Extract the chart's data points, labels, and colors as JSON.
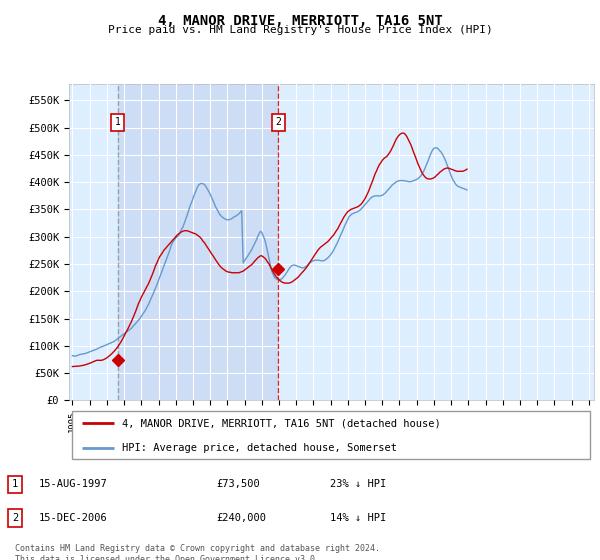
{
  "title": "4, MANOR DRIVE, MERRIOTT, TA16 5NT",
  "subtitle": "Price paid vs. HM Land Registry's House Price Index (HPI)",
  "legend_line1": "4, MANOR DRIVE, MERRIOTT, TA16 5NT (detached house)",
  "legend_line2": "HPI: Average price, detached house, Somerset",
  "footer": "Contains HM Land Registry data © Crown copyright and database right 2024.\nThis data is licensed under the Open Government Licence v3.0.",
  "annotation1": {
    "num": "1",
    "date": "15-AUG-1997",
    "price": "£73,500",
    "pct": "23% ↓ HPI"
  },
  "annotation2": {
    "num": "2",
    "date": "15-DEC-2006",
    "price": "£240,000",
    "pct": "14% ↓ HPI"
  },
  "ylabel_ticks": [
    "£0",
    "£50K",
    "£100K",
    "£150K",
    "£200K",
    "£250K",
    "£300K",
    "£350K",
    "£400K",
    "£450K",
    "£500K",
    "£550K"
  ],
  "ytick_vals": [
    0,
    50000,
    100000,
    150000,
    200000,
    250000,
    300000,
    350000,
    400000,
    450000,
    500000,
    550000
  ],
  "ylim": [
    0,
    580000
  ],
  "xlim_start": 1994.8,
  "xlim_end": 2025.3,
  "hpi_color": "#6699cc",
  "price_color": "#cc0000",
  "bg_color": "#ffffff",
  "plot_bg": "#ddeeff",
  "shade_color": "#ccddf5",
  "grid_color": "#ffffff",
  "vline1_color": "#888888",
  "vline2_color": "#cc0000",
  "marker1_x": 1997.62,
  "marker1_y": 73500,
  "marker2_x": 2006.96,
  "marker2_y": 240000,
  "hpi_x": [
    1995.0,
    1995.08,
    1995.17,
    1995.25,
    1995.33,
    1995.42,
    1995.5,
    1995.58,
    1995.67,
    1995.75,
    1995.83,
    1995.92,
    1996.0,
    1996.08,
    1996.17,
    1996.25,
    1996.33,
    1996.42,
    1996.5,
    1996.58,
    1996.67,
    1996.75,
    1996.83,
    1996.92,
    1997.0,
    1997.08,
    1997.17,
    1997.25,
    1997.33,
    1997.42,
    1997.5,
    1997.58,
    1997.67,
    1997.75,
    1997.83,
    1997.92,
    1998.0,
    1998.08,
    1998.17,
    1998.25,
    1998.33,
    1998.42,
    1998.5,
    1998.58,
    1998.67,
    1998.75,
    1998.83,
    1998.92,
    1999.0,
    1999.08,
    1999.17,
    1999.25,
    1999.33,
    1999.42,
    1999.5,
    1999.58,
    1999.67,
    1999.75,
    1999.83,
    1999.92,
    2000.0,
    2000.08,
    2000.17,
    2000.25,
    2000.33,
    2000.42,
    2000.5,
    2000.58,
    2000.67,
    2000.75,
    2000.83,
    2000.92,
    2001.0,
    2001.08,
    2001.17,
    2001.25,
    2001.33,
    2001.42,
    2001.5,
    2001.58,
    2001.67,
    2001.75,
    2001.83,
    2001.92,
    2002.0,
    2002.08,
    2002.17,
    2002.25,
    2002.33,
    2002.42,
    2002.5,
    2002.58,
    2002.67,
    2002.75,
    2002.83,
    2002.92,
    2003.0,
    2003.08,
    2003.17,
    2003.25,
    2003.33,
    2003.42,
    2003.5,
    2003.58,
    2003.67,
    2003.75,
    2003.83,
    2003.92,
    2004.0,
    2004.08,
    2004.17,
    2004.25,
    2004.33,
    2004.42,
    2004.5,
    2004.58,
    2004.67,
    2004.75,
    2004.83,
    2004.92,
    2005.0,
    2005.08,
    2005.17,
    2005.25,
    2005.33,
    2005.42,
    2005.5,
    2005.58,
    2005.67,
    2005.75,
    2005.83,
    2005.92,
    2006.0,
    2006.08,
    2006.17,
    2006.25,
    2006.33,
    2006.42,
    2006.5,
    2006.58,
    2006.67,
    2006.75,
    2006.83,
    2006.92,
    2007.0,
    2007.08,
    2007.17,
    2007.25,
    2007.33,
    2007.42,
    2007.5,
    2007.58,
    2007.67,
    2007.75,
    2007.83,
    2007.92,
    2008.0,
    2008.08,
    2008.17,
    2008.25,
    2008.33,
    2008.42,
    2008.5,
    2008.58,
    2008.67,
    2008.75,
    2008.83,
    2008.92,
    2009.0,
    2009.08,
    2009.17,
    2009.25,
    2009.33,
    2009.42,
    2009.5,
    2009.58,
    2009.67,
    2009.75,
    2009.83,
    2009.92,
    2010.0,
    2010.08,
    2010.17,
    2010.25,
    2010.33,
    2010.42,
    2010.5,
    2010.58,
    2010.67,
    2010.75,
    2010.83,
    2010.92,
    2011.0,
    2011.08,
    2011.17,
    2011.25,
    2011.33,
    2011.42,
    2011.5,
    2011.58,
    2011.67,
    2011.75,
    2011.83,
    2011.92,
    2012.0,
    2012.08,
    2012.17,
    2012.25,
    2012.33,
    2012.42,
    2012.5,
    2012.58,
    2012.67,
    2012.75,
    2012.83,
    2012.92,
    2013.0,
    2013.08,
    2013.17,
    2013.25,
    2013.33,
    2013.42,
    2013.5,
    2013.58,
    2013.67,
    2013.75,
    2013.83,
    2013.92,
    2014.0,
    2014.08,
    2014.17,
    2014.25,
    2014.33,
    2014.42,
    2014.5,
    2014.58,
    2014.67,
    2014.75,
    2014.83,
    2014.92,
    2015.0,
    2015.08,
    2015.17,
    2015.25,
    2015.33,
    2015.42,
    2015.5,
    2015.58,
    2015.67,
    2015.75,
    2015.83,
    2015.92,
    2016.0,
    2016.08,
    2016.17,
    2016.25,
    2016.33,
    2016.42,
    2016.5,
    2016.58,
    2016.67,
    2016.75,
    2016.83,
    2016.92,
    2017.0,
    2017.08,
    2017.17,
    2017.25,
    2017.33,
    2017.42,
    2017.5,
    2017.58,
    2017.67,
    2017.75,
    2017.83,
    2017.92,
    2018.0,
    2018.08,
    2018.17,
    2018.25,
    2018.33,
    2018.42,
    2018.5,
    2018.58,
    2018.67,
    2018.75,
    2018.83,
    2018.92,
    2019.0,
    2019.08,
    2019.17,
    2019.25,
    2019.33,
    2019.42,
    2019.5,
    2019.58,
    2019.67,
    2019.75,
    2019.83,
    2019.92,
    2020.0,
    2020.08,
    2020.17,
    2020.25,
    2020.33,
    2020.42,
    2020.5,
    2020.58,
    2020.67,
    2020.75,
    2020.83,
    2020.92,
    2021.0,
    2021.08,
    2021.17,
    2021.25,
    2021.33,
    2021.42,
    2021.5,
    2021.58,
    2021.67,
    2021.75,
    2021.83,
    2021.92,
    2022.0,
    2022.08,
    2022.17,
    2022.25,
    2022.33,
    2022.42,
    2022.5,
    2022.58,
    2022.67,
    2022.75,
    2022.83,
    2022.92,
    2023.0,
    2023.08,
    2023.17,
    2023.25,
    2023.33,
    2023.42,
    2023.5,
    2023.58,
    2023.67,
    2023.75,
    2023.83,
    2023.92,
    2024.0,
    2024.08,
    2024.17,
    2024.25,
    2024.33,
    2024.42,
    2024.5
  ],
  "hpi_y": [
    82000,
    81500,
    81000,
    82000,
    83000,
    84000,
    84500,
    85000,
    85500,
    86000,
    87000,
    88000,
    89000,
    90000,
    91000,
    92000,
    93000,
    94000,
    95500,
    97000,
    98000,
    99000,
    100000,
    101000,
    102000,
    103500,
    104500,
    105500,
    107000,
    108000,
    110000,
    112000,
    114000,
    116000,
    118000,
    120000,
    122000,
    124000,
    126000,
    128000,
    130000,
    132000,
    135000,
    138000,
    141000,
    144000,
    147000,
    150000,
    154000,
    158000,
    162000,
    166000,
    171000,
    176000,
    182000,
    188000,
    194000,
    200000,
    206000,
    213000,
    220000,
    227000,
    234000,
    241000,
    248000,
    255000,
    262000,
    269000,
    277000,
    285000,
    290000,
    294000,
    298000,
    300000,
    303000,
    308000,
    313000,
    318000,
    325000,
    332000,
    340000,
    348000,
    356000,
    363000,
    370000,
    377000,
    384000,
    390000,
    395000,
    397000,
    398000,
    397000,
    396000,
    392000,
    388000,
    383000,
    378000,
    372000,
    366000,
    360000,
    354000,
    349000,
    344000,
    340000,
    337000,
    335000,
    333000,
    332000,
    331000,
    331000,
    332000,
    333000,
    335000,
    337000,
    338000,
    340000,
    342000,
    345000,
    348000,
    252000,
    256000,
    260000,
    264000,
    268000,
    272000,
    277000,
    282000,
    287000,
    293000,
    299000,
    305000,
    310000,
    308000,
    302000,
    295000,
    285000,
    273000,
    260000,
    248000,
    237000,
    230000,
    225000,
    223000,
    222000,
    221000,
    222000,
    223000,
    226000,
    229000,
    233000,
    237000,
    241000,
    245000,
    247000,
    248000,
    248000,
    247000,
    246000,
    245000,
    244000,
    243000,
    243000,
    244000,
    246000,
    248000,
    251000,
    253000,
    255000,
    256000,
    257000,
    257000,
    257000,
    257000,
    256000,
    256000,
    256000,
    257000,
    259000,
    261000,
    264000,
    267000,
    271000,
    275000,
    280000,
    285000,
    291000,
    297000,
    303000,
    309000,
    315000,
    321000,
    327000,
    332000,
    337000,
    340000,
    342000,
    343000,
    344000,
    345000,
    346000,
    348000,
    350000,
    353000,
    356000,
    359000,
    362000,
    365000,
    368000,
    371000,
    373000,
    374000,
    375000,
    375000,
    375000,
    375000,
    375000,
    376000,
    378000,
    380000,
    383000,
    386000,
    389000,
    392000,
    395000,
    397000,
    399000,
    401000,
    402000,
    403000,
    403000,
    403000,
    403000,
    402000,
    402000,
    401000,
    401000,
    401000,
    402000,
    403000,
    404000,
    405000,
    407000,
    409000,
    412000,
    416000,
    421000,
    427000,
    433000,
    440000,
    447000,
    453000,
    459000,
    462000,
    463000,
    463000,
    461000,
    458000,
    455000,
    451000,
    446000,
    440000,
    433000,
    426000,
    419000,
    412000,
    406000,
    401000,
    397000,
    394000,
    392000,
    391000,
    390000,
    389000,
    388000,
    387000,
    386000,
    385000,
    385000,
    385000,
    385000
  ],
  "price_y": [
    62000,
    62200,
    62400,
    62600,
    62800,
    63100,
    63500,
    64000,
    64600,
    65300,
    66100,
    67000,
    68000,
    69100,
    70200,
    71400,
    72500,
    73500,
    73500,
    73500,
    73500,
    74000,
    75000,
    76500,
    78000,
    80000,
    82000,
    84500,
    87000,
    90000,
    93000,
    96000,
    100000,
    104000,
    108000,
    113000,
    118000,
    123000,
    128000,
    133000,
    138000,
    144000,
    150000,
    156000,
    163000,
    170000,
    177000,
    183000,
    189000,
    194000,
    199000,
    204000,
    209000,
    214000,
    220000,
    226000,
    233000,
    240000,
    247000,
    253000,
    259000,
    264000,
    268000,
    272000,
    276000,
    279000,
    282000,
    285000,
    288000,
    291000,
    294000,
    297000,
    300000,
    303000,
    305000,
    307000,
    309000,
    310000,
    311000,
    311000,
    311000,
    310000,
    309000,
    308000,
    307000,
    306000,
    305000,
    303000,
    301000,
    299000,
    296000,
    292000,
    289000,
    285000,
    281000,
    277000,
    273000,
    269000,
    265000,
    261000,
    257000,
    253000,
    249000,
    246000,
    243000,
    241000,
    239000,
    237000,
    236000,
    235000,
    235000,
    234000,
    234000,
    234000,
    234000,
    234000,
    234000,
    235000,
    236000,
    237000,
    239000,
    241000,
    243000,
    245000,
    247000,
    249000,
    252000,
    255000,
    258000,
    261000,
    263000,
    265000,
    265000,
    263000,
    261000,
    258000,
    254000,
    250000,
    245000,
    240000,
    235000,
    231000,
    227000,
    224000,
    221000,
    219000,
    217000,
    216000,
    215000,
    215000,
    215000,
    215000,
    216000,
    217000,
    219000,
    221000,
    223000,
    225000,
    228000,
    231000,
    234000,
    237000,
    240000,
    243000,
    247000,
    251000,
    255000,
    259000,
    263000,
    267000,
    271000,
    275000,
    278000,
    281000,
    283000,
    285000,
    287000,
    289000,
    291000,
    294000,
    297000,
    300000,
    303000,
    307000,
    311000,
    315000,
    320000,
    325000,
    330000,
    335000,
    339000,
    343000,
    346000,
    348000,
    350000,
    351000,
    352000,
    353000,
    354000,
    355000,
    357000,
    359000,
    362000,
    366000,
    370000,
    375000,
    381000,
    387000,
    394000,
    401000,
    408000,
    415000,
    421000,
    427000,
    432000,
    436000,
    440000,
    443000,
    445000,
    447000,
    450000,
    454000,
    458000,
    463000,
    469000,
    475000,
    480000,
    484000,
    487000,
    489000,
    490000,
    490000,
    488000,
    484000,
    479000,
    474000,
    468000,
    461000,
    454000,
    447000,
    440000,
    433000,
    427000,
    421000,
    416000,
    412000,
    409000,
    407000,
    406000,
    406000,
    406000,
    407000,
    408000,
    410000,
    413000,
    415000,
    418000,
    420000,
    422000,
    424000,
    425000,
    426000,
    426000,
    425000,
    424000,
    423000,
    422000,
    421000,
    420000,
    420000,
    420000,
    420000,
    420000,
    421000,
    422000,
    424000
  ]
}
